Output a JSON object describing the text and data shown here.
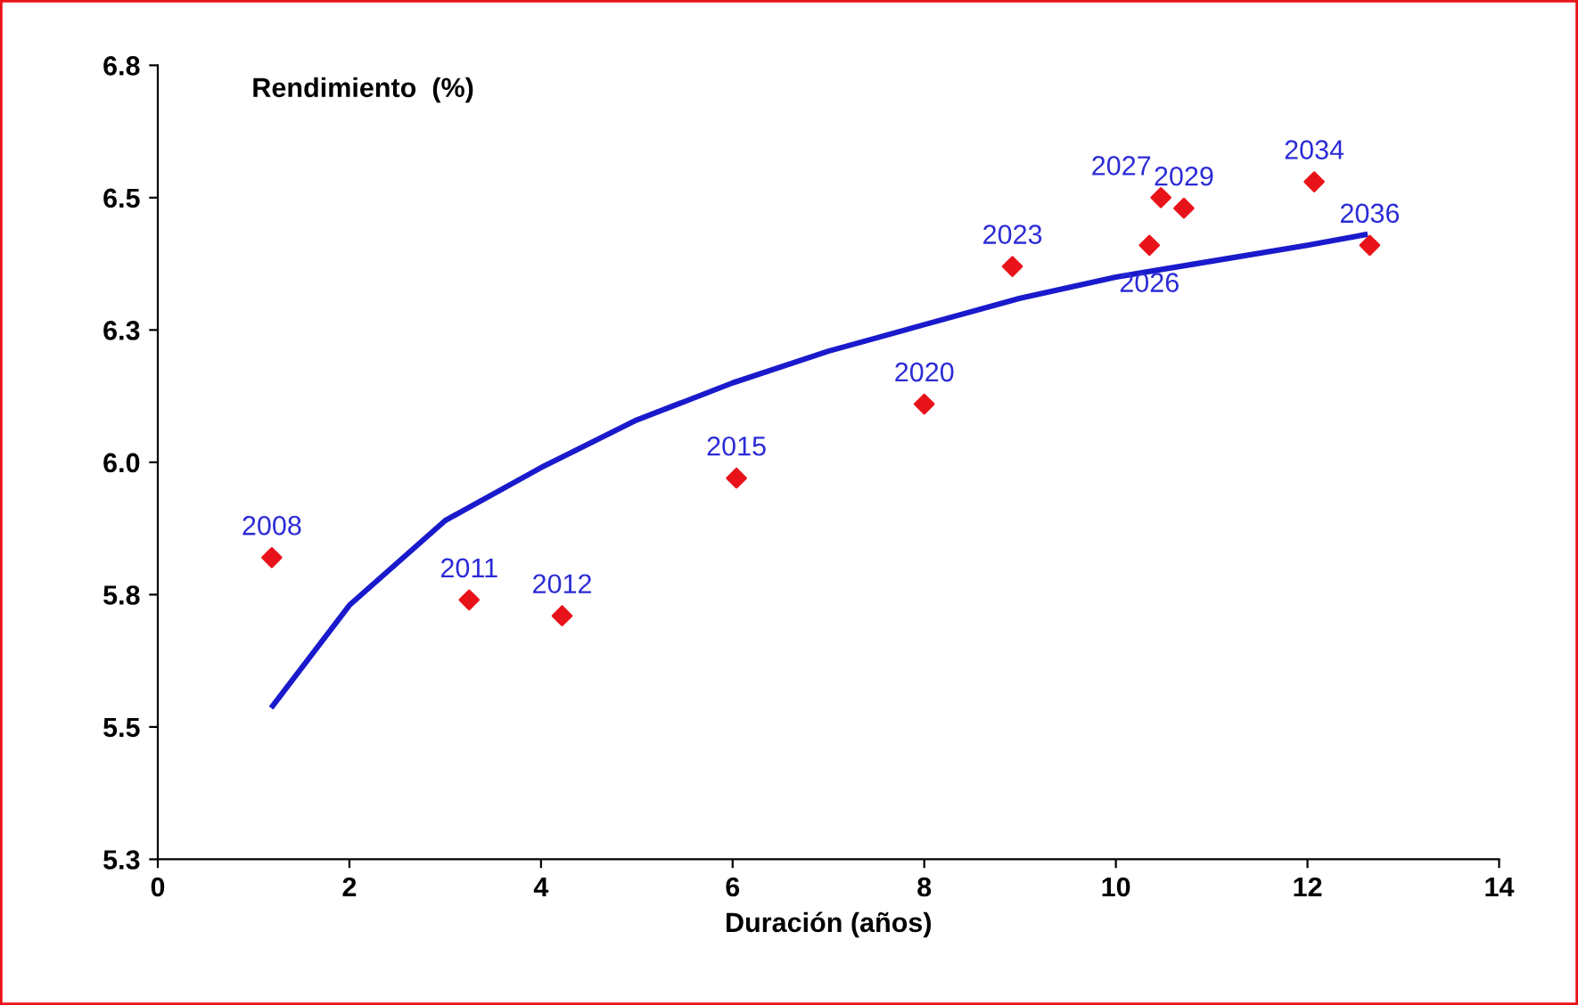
{
  "chart_data": {
    "type": "scatter",
    "xlabel": "Duración (años)",
    "ylabel": "Rendimiento  (%)",
    "xlim": [
      0,
      14
    ],
    "xticks": [
      0,
      2,
      4,
      6,
      8,
      10,
      12,
      14
    ],
    "ylim": [
      5.25,
      6.75
    ],
    "yticks": [
      {
        "value": 5.25,
        "label": "5.3"
      },
      {
        "value": 5.5,
        "label": "5.5"
      },
      {
        "value": 5.75,
        "label": "5.8"
      },
      {
        "value": 6.0,
        "label": "6.0"
      },
      {
        "value": 6.25,
        "label": "6.3"
      },
      {
        "value": 6.5,
        "label": "6.5"
      },
      {
        "value": 6.75,
        "label": "6.8"
      }
    ],
    "grid": false,
    "legend": false,
    "series": [
      {
        "marker": "diamond",
        "color": "#e8131a",
        "x": [
          1.19,
          3.25,
          4.22,
          6.04,
          8.0,
          8.92,
          10.35,
          10.47,
          10.71,
          12.07,
          12.65
        ],
        "values": [
          5.82,
          5.74,
          5.71,
          5.97,
          6.11,
          6.37,
          6.41,
          6.5,
          6.48,
          6.53,
          6.41
        ]
      },
      {
        "type": "line",
        "color": "#1a1acc",
        "x": [
          1.2,
          2,
          3,
          4,
          5,
          6,
          7,
          8,
          9,
          10,
          11,
          12,
          12.6
        ],
        "values": [
          5.54,
          5.73,
          5.89,
          5.99,
          6.08,
          6.15,
          6.21,
          6.26,
          6.31,
          6.35,
          6.38,
          6.41,
          6.43
        ]
      }
    ],
    "annotations": [
      {
        "text": "2008",
        "x": 1.19,
        "y": 5.82
      },
      {
        "text": "2011",
        "x": 3.25,
        "y": 5.74
      },
      {
        "text": "2012",
        "x": 4.22,
        "y": 5.71
      },
      {
        "text": "2015",
        "x": 6.04,
        "y": 5.97
      },
      {
        "text": "2020",
        "x": 8.0,
        "y": 6.11
      },
      {
        "text": "2023",
        "x": 8.92,
        "y": 6.37
      },
      {
        "text": "2026",
        "x": 10.35,
        "y": 6.41
      },
      {
        "text": "2027",
        "x": 10.47,
        "y": 6.5
      },
      {
        "text": "2029",
        "x": 10.71,
        "y": 6.48
      },
      {
        "text": "2034",
        "x": 12.07,
        "y": 6.53
      },
      {
        "text": "2036",
        "x": 12.65,
        "y": 6.41
      }
    ]
  }
}
